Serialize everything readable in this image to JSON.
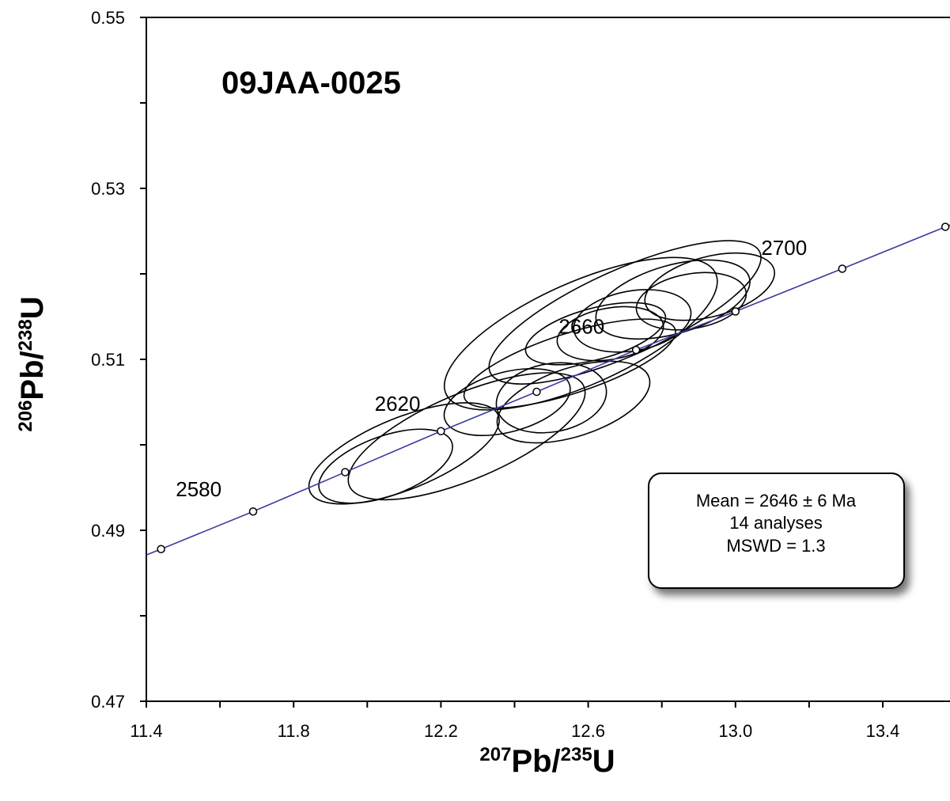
{
  "chart_data": {
    "type": "scatter",
    "title": "09JAA-0025",
    "xlabel": {
      "sup": "207",
      "main": "Pb/",
      "sup2": "235",
      "end": "U"
    },
    "ylabel": {
      "sup": "206",
      "main": "Pb/",
      "sup2": "238",
      "end": "U"
    },
    "xlim": [
      11.4,
      13.6
    ],
    "ylim": [
      0.47,
      0.55
    ],
    "x_ticks": [
      "11.4",
      "11.8",
      "12.2",
      "12.6",
      "13.0",
      "13.4"
    ],
    "x_tick_values": [
      11.4,
      11.8,
      12.2,
      12.6,
      13.0,
      13.4
    ],
    "x_minor_ticks": [
      11.6,
      12.0,
      12.4,
      12.8,
      13.2
    ],
    "y_ticks": [
      "0.47",
      "0.49",
      "0.51",
      "0.53",
      "0.55"
    ],
    "y_tick_values": [
      0.47,
      0.49,
      0.51,
      0.53,
      0.55
    ],
    "y_minor_ticks": [
      0.48,
      0.5,
      0.52,
      0.54
    ],
    "concordia_color": "#3a3aa0",
    "concordia": [
      {
        "x": 11.2,
        "y": 0.4837
      },
      {
        "x": 11.44,
        "y": 0.4878
      },
      {
        "x": 11.69,
        "y": 0.4922
      },
      {
        "x": 11.94,
        "y": 0.4968
      },
      {
        "x": 12.2,
        "y": 0.5016
      },
      {
        "x": 12.46,
        "y": 0.5062
      },
      {
        "x": 12.73,
        "y": 0.5111
      },
      {
        "x": 13.0,
        "y": 0.5156
      },
      {
        "x": 13.29,
        "y": 0.5206
      },
      {
        "x": 13.57,
        "y": 0.5255
      },
      {
        "x": 13.7,
        "y": 0.5276
      }
    ],
    "age_markers": [
      {
        "x": 11.44,
        "y": 0.4878
      },
      {
        "x": 11.69,
        "y": 0.4922
      },
      {
        "x": 11.94,
        "y": 0.4968
      },
      {
        "x": 12.2,
        "y": 0.5016
      },
      {
        "x": 12.46,
        "y": 0.5062
      },
      {
        "x": 12.73,
        "y": 0.5111
      },
      {
        "x": 13.0,
        "y": 0.5156
      },
      {
        "x": 13.29,
        "y": 0.5206
      },
      {
        "x": 13.57,
        "y": 0.5255
      }
    ],
    "age_labels": [
      {
        "text": "2580",
        "x": 11.48,
        "y": 0.494
      },
      {
        "text": "2620",
        "x": 12.02,
        "y": 0.504
      },
      {
        "text": "2660",
        "x": 12.52,
        "y": 0.513
      },
      {
        "text": "2700",
        "x": 13.07,
        "y": 0.5222
      }
    ],
    "error_ellipses": [
      {
        "cx": 12.05,
        "cy": 0.4975,
        "rx": 0.21,
        "ry": 0.0035,
        "angle_deg": 20
      },
      {
        "cx": 12.1,
        "cy": 0.499,
        "rx": 0.38,
        "ry": 0.0042,
        "angle_deg": 22
      },
      {
        "cx": 12.27,
        "cy": 0.501,
        "rx": 0.52,
        "ry": 0.005,
        "angle_deg": 23
      },
      {
        "cx": 12.58,
        "cy": 0.513,
        "rx": 0.63,
        "ry": 0.006,
        "angle_deg": 24
      },
      {
        "cx": 12.7,
        "cy": 0.5155,
        "rx": 0.63,
        "ry": 0.005,
        "angle_deg": 24
      },
      {
        "cx": 12.38,
        "cy": 0.505,
        "rx": 0.18,
        "ry": 0.0035,
        "angle_deg": 15
      },
      {
        "cx": 12.5,
        "cy": 0.5055,
        "rx": 0.13,
        "ry": 0.004,
        "angle_deg": 10
      },
      {
        "cx": 12.56,
        "cy": 0.505,
        "rx": 0.26,
        "ry": 0.004,
        "angle_deg": 18
      },
      {
        "cx": 12.55,
        "cy": 0.5095,
        "rx": 0.43,
        "ry": 0.0035,
        "angle_deg": 18
      },
      {
        "cx": 12.62,
        "cy": 0.513,
        "rx": 0.22,
        "ry": 0.003,
        "angle_deg": 15
      },
      {
        "cx": 12.66,
        "cy": 0.513,
        "rx": 0.12,
        "ry": 0.003,
        "angle_deg": 10
      },
      {
        "cx": 12.72,
        "cy": 0.5145,
        "rx": 0.15,
        "ry": 0.0035,
        "angle_deg": 10
      },
      {
        "cx": 12.88,
        "cy": 0.5168,
        "rx": 0.13,
        "ry": 0.0032,
        "angle_deg": 10
      },
      {
        "cx": 12.83,
        "cy": 0.517,
        "rx": 0.26,
        "ry": 0.004,
        "angle_deg": 16
      },
      {
        "cx": 12.93,
        "cy": 0.5185,
        "rx": 0.19,
        "ry": 0.0035,
        "angle_deg": 15
      }
    ],
    "annotation": {
      "lines": [
        "Mean = 2646 ± 6  Ma",
        "14 analyses",
        "MSWD = 1.3"
      ],
      "placement": "lower-right"
    }
  }
}
